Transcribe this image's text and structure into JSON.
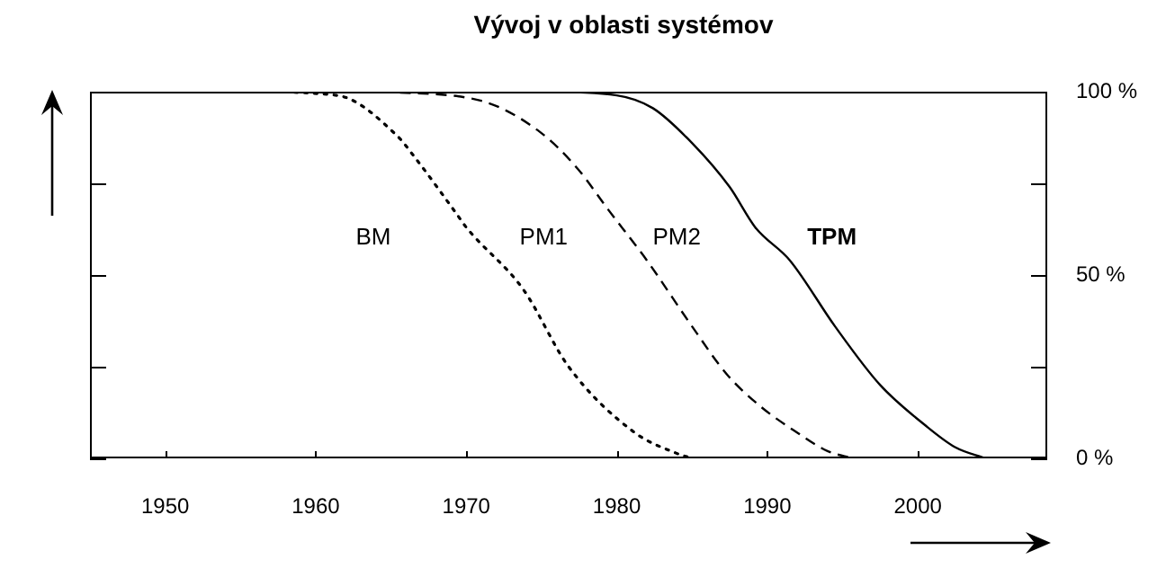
{
  "chart_data": {
    "type": "line",
    "title": "Vývoj v oblasti systémov",
    "xlim": [
      1945,
      2008.6
    ],
    "xticks": [
      1950,
      1960,
      1970,
      1980,
      1990,
      2000
    ],
    "ylim": [
      0,
      100
    ],
    "yticks": [
      {
        "value": 0,
        "label": "0 %"
      },
      {
        "value": 25,
        "label": null
      },
      {
        "value": 50,
        "label": "50 %"
      },
      {
        "value": 75,
        "label": null
      },
      {
        "value": 100,
        "label": "100 %"
      }
    ],
    "grid": false,
    "legend": false,
    "marker": "none",
    "series": [
      {
        "color": "#000000",
        "line_style": "dotted",
        "x": [
          1950.7,
          1955,
          1961.4,
          1965.4,
          1966.6,
          1969.3,
          1970,
          1973.8,
          1976.8,
          1981.2,
          1983.9,
          1985
        ],
        "values": [
          100,
          100,
          99,
          88,
          82,
          67,
          63,
          46,
          25,
          7,
          1.5,
          0
        ]
      },
      {
        "color": "#000000",
        "line_style": "dashed",
        "x": [
          1964.4,
          1971,
          1974.9,
          1977.4,
          1979.4,
          1982,
          1985,
          1987.3,
          1989.6,
          1992,
          1994,
          1995.7
        ],
        "values": [
          100,
          97.5,
          89,
          79,
          68,
          54,
          36,
          23,
          14,
          7,
          2,
          0
        ]
      },
      {
        "color": "#000000",
        "line_style": "solid",
        "x": [
          1955,
          1975,
          1980,
          1982.4,
          1985,
          1987.5,
          1989.2,
          1991.5,
          1994.5,
          1997.5,
          2000.5,
          2002.5,
          2004.5
        ],
        "values": [
          100,
          100,
          99,
          95.5,
          86,
          74,
          63,
          54,
          36,
          20,
          9,
          3,
          0
        ]
      }
    ],
    "annotations": [
      "BM",
      "PM1",
      "PM2",
      "TPM"
    ]
  }
}
